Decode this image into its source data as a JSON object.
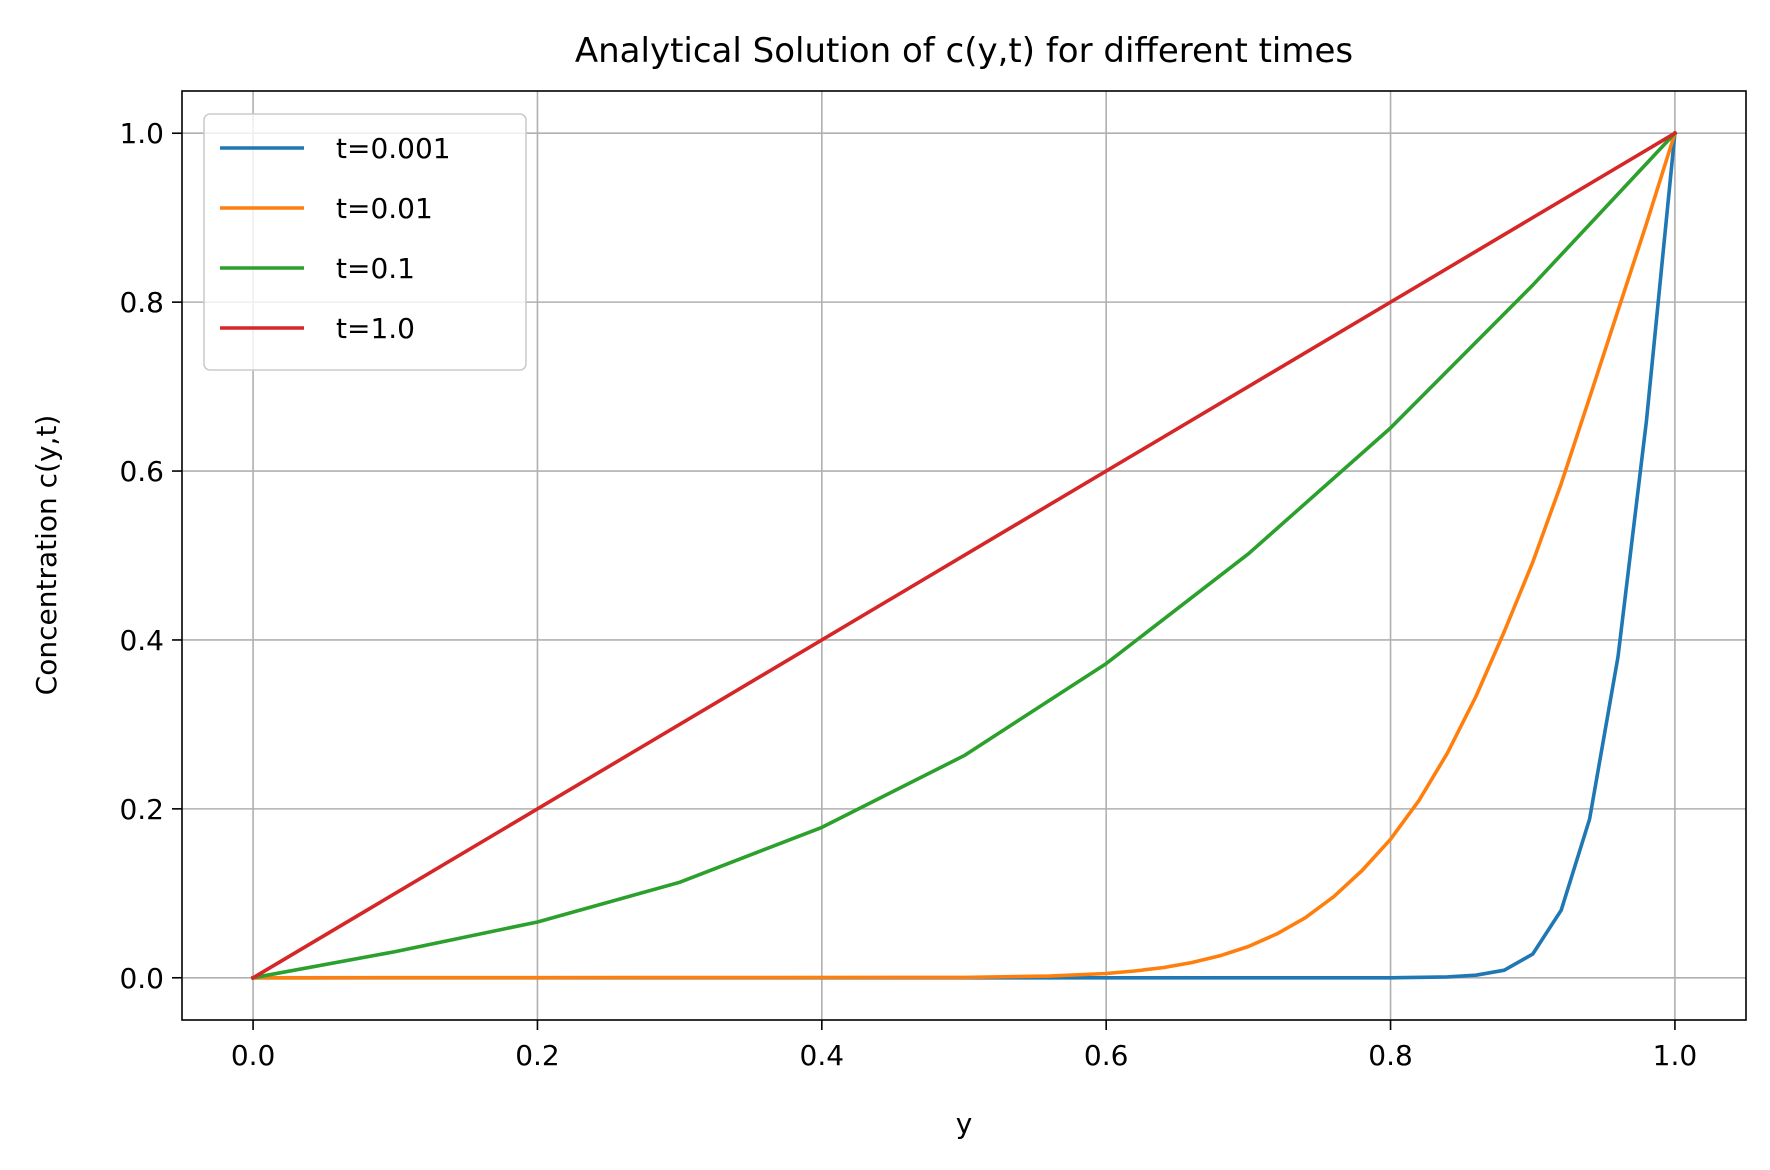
{
  "chart_data": {
    "type": "line",
    "title": "Analytical Solution of c(y,t) for different times",
    "xlabel": "y",
    "ylabel": "Concentration c(y,t)",
    "xlim": [
      -0.05,
      1.05
    ],
    "ylim": [
      -0.05,
      1.05
    ],
    "xticks": [
      0.0,
      0.2,
      0.4,
      0.6,
      0.8,
      1.0
    ],
    "yticks": [
      0.0,
      0.2,
      0.4,
      0.6,
      0.8,
      1.0
    ],
    "xtick_labels": [
      "0.0",
      "0.2",
      "0.4",
      "0.6",
      "0.8",
      "1.0"
    ],
    "ytick_labels": [
      "0.0",
      "0.2",
      "0.4",
      "0.6",
      "0.8",
      "1.0"
    ],
    "grid": true,
    "legend_position": "upper-left",
    "series": [
      {
        "name": "t=0.001",
        "color": "#1f77b4",
        "x": [
          0.0,
          0.8,
          0.84,
          0.86,
          0.88,
          0.9,
          0.92,
          0.94,
          0.96,
          0.98,
          1.0
        ],
        "y": [
          0.0,
          0.0,
          0.001,
          0.003,
          0.009,
          0.028,
          0.08,
          0.188,
          0.38,
          0.66,
          1.0
        ]
      },
      {
        "name": "t=0.01",
        "color": "#ff7f0e",
        "x": [
          0.0,
          0.5,
          0.56,
          0.6,
          0.62,
          0.64,
          0.66,
          0.68,
          0.7,
          0.72,
          0.74,
          0.76,
          0.78,
          0.8,
          0.82,
          0.84,
          0.86,
          0.88,
          0.9,
          0.92,
          0.94,
          0.96,
          0.98,
          1.0
        ],
        "y": [
          0.0,
          0.0005,
          0.002,
          0.005,
          0.008,
          0.012,
          0.018,
          0.026,
          0.037,
          0.052,
          0.071,
          0.096,
          0.127,
          0.164,
          0.21,
          0.266,
          0.333,
          0.41,
          0.492,
          0.585,
          0.687,
          0.79,
          0.893,
          1.0
        ]
      },
      {
        "name": "t=0.1",
        "color": "#2ca02c",
        "x": [
          0.0,
          0.1,
          0.2,
          0.3,
          0.4,
          0.5,
          0.6,
          0.7,
          0.8,
          0.9,
          1.0
        ],
        "y": [
          0.0,
          0.031,
          0.066,
          0.113,
          0.178,
          0.263,
          0.372,
          0.502,
          0.651,
          0.82,
          1.0
        ]
      },
      {
        "name": "t=1.0",
        "color": "#d62728",
        "x": [
          0.0,
          1.0
        ],
        "y": [
          0.0,
          1.0
        ]
      }
    ]
  }
}
